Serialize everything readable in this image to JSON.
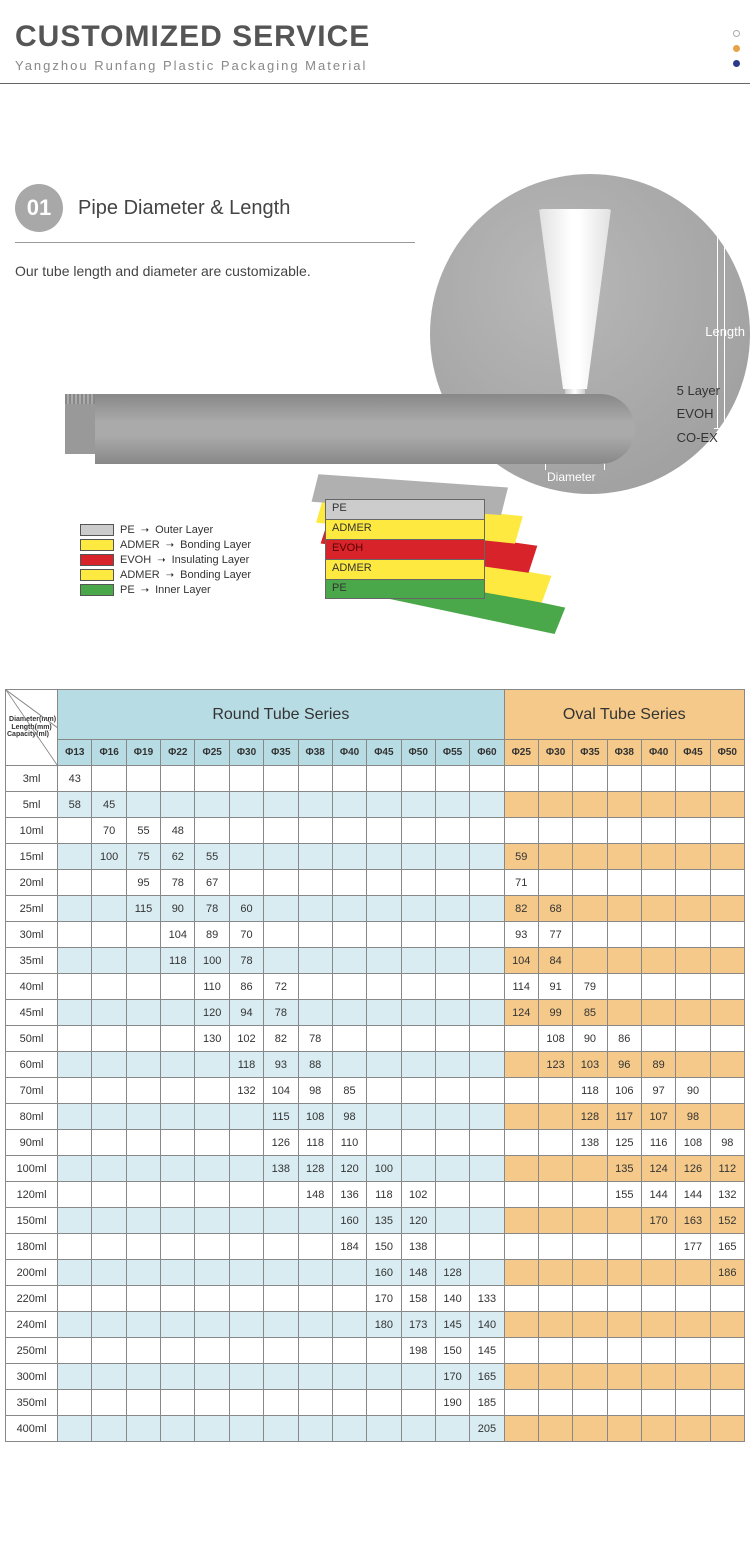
{
  "header": {
    "title": "CUSTOMIZED SERVICE",
    "subtitle": "Yangzhou Runfang Plastic Packaging Material"
  },
  "section01": {
    "num": "01",
    "title": "Pipe Diameter & Length",
    "desc": "Our tube length and diameter are customizable.",
    "len_label": "Length",
    "dia_label": "Diameter"
  },
  "layers": {
    "side_text": [
      "5 Layer",
      "EVOH",
      "CO-EX"
    ],
    "box": [
      "PE",
      "ADMER",
      "EVOH",
      "ADMER",
      "PE"
    ],
    "legend": [
      {
        "sw": "sw-pe",
        "name": "PE",
        "role": "Outer Layer"
      },
      {
        "sw": "sw-ad",
        "name": "ADMER",
        "role": "Bonding Layer"
      },
      {
        "sw": "sw-ev",
        "name": "EVOH",
        "role": "Insulating Layer"
      },
      {
        "sw": "sw-ad",
        "name": "ADMER",
        "role": "Bonding Layer"
      },
      {
        "sw": "sw-pe2",
        "name": "PE",
        "role": "Inner Layer"
      }
    ]
  },
  "table": {
    "round_title": "Round Tube Series",
    "oval_title": "Oval Tube Series",
    "corner": {
      "a": "Diameter(mm)",
      "b": "Length(mm)",
      "c": "Capacity(ml)"
    },
    "round_dias": [
      "Φ13",
      "Φ16",
      "Φ19",
      "Φ22",
      "Φ25",
      "Φ30",
      "Φ35",
      "Φ38",
      "Φ40",
      "Φ45",
      "Φ50",
      "Φ55",
      "Φ60"
    ],
    "oval_dias": [
      "Φ25",
      "Φ30",
      "Φ35",
      "Φ38",
      "Φ40",
      "Φ45",
      "Φ50"
    ],
    "rows": [
      {
        "cap": "3ml",
        "r": [
          "43",
          "",
          "",
          "",
          "",
          "",
          "",
          "",
          "",
          "",
          "",
          "",
          ""
        ],
        "o": [
          "",
          "",
          "",
          "",
          "",
          "",
          ""
        ]
      },
      {
        "cap": "5ml",
        "r": [
          "58",
          "45",
          "",
          "",
          "",
          "",
          "",
          "",
          "",
          "",
          "",
          "",
          ""
        ],
        "o": [
          "",
          "",
          "",
          "",
          "",
          "",
          ""
        ]
      },
      {
        "cap": "10ml",
        "r": [
          "",
          "70",
          "55",
          "48",
          "",
          "",
          "",
          "",
          "",
          "",
          "",
          "",
          ""
        ],
        "o": [
          "",
          "",
          "",
          "",
          "",
          "",
          ""
        ]
      },
      {
        "cap": "15ml",
        "r": [
          "",
          "100",
          "75",
          "62",
          "55",
          "",
          "",
          "",
          "",
          "",
          "",
          "",
          ""
        ],
        "o": [
          "59",
          "",
          "",
          "",
          "",
          "",
          ""
        ]
      },
      {
        "cap": "20ml",
        "r": [
          "",
          "",
          "95",
          "78",
          "67",
          "",
          "",
          "",
          "",
          "",
          "",
          "",
          ""
        ],
        "o": [
          "71",
          "",
          "",
          "",
          "",
          "",
          ""
        ]
      },
      {
        "cap": "25ml",
        "r": [
          "",
          "",
          "115",
          "90",
          "78",
          "60",
          "",
          "",
          "",
          "",
          "",
          "",
          ""
        ],
        "o": [
          "82",
          "68",
          "",
          "",
          "",
          "",
          ""
        ]
      },
      {
        "cap": "30ml",
        "r": [
          "",
          "",
          "",
          "104",
          "89",
          "70",
          "",
          "",
          "",
          "",
          "",
          "",
          ""
        ],
        "o": [
          "93",
          "77",
          "",
          "",
          "",
          "",
          ""
        ]
      },
      {
        "cap": "35ml",
        "r": [
          "",
          "",
          "",
          "118",
          "100",
          "78",
          "",
          "",
          "",
          "",
          "",
          "",
          ""
        ],
        "o": [
          "104",
          "84",
          "",
          "",
          "",
          "",
          ""
        ]
      },
      {
        "cap": "40ml",
        "r": [
          "",
          "",
          "",
          "",
          "110",
          "86",
          "72",
          "",
          "",
          "",
          "",
          "",
          ""
        ],
        "o": [
          "114",
          "91",
          "79",
          "",
          "",
          "",
          ""
        ]
      },
      {
        "cap": "45ml",
        "r": [
          "",
          "",
          "",
          "",
          "120",
          "94",
          "78",
          "",
          "",
          "",
          "",
          "",
          ""
        ],
        "o": [
          "124",
          "99",
          "85",
          "",
          "",
          "",
          ""
        ]
      },
      {
        "cap": "50ml",
        "r": [
          "",
          "",
          "",
          "",
          "130",
          "102",
          "82",
          "78",
          "",
          "",
          "",
          "",
          ""
        ],
        "o": [
          "",
          "108",
          "90",
          "86",
          "",
          "",
          ""
        ]
      },
      {
        "cap": "60ml",
        "r": [
          "",
          "",
          "",
          "",
          "",
          "118",
          "93",
          "88",
          "",
          "",
          "",
          "",
          ""
        ],
        "o": [
          "",
          "123",
          "103",
          "96",
          "89",
          "",
          ""
        ]
      },
      {
        "cap": "70ml",
        "r": [
          "",
          "",
          "",
          "",
          "",
          "132",
          "104",
          "98",
          "85",
          "",
          "",
          "",
          ""
        ],
        "o": [
          "",
          "",
          "118",
          "106",
          "97",
          "90",
          ""
        ]
      },
      {
        "cap": "80ml",
        "r": [
          "",
          "",
          "",
          "",
          "",
          "",
          "115",
          "108",
          "98",
          "",
          "",
          "",
          ""
        ],
        "o": [
          "",
          "",
          "128",
          "117",
          "107",
          "98",
          ""
        ]
      },
      {
        "cap": "90ml",
        "r": [
          "",
          "",
          "",
          "",
          "",
          "",
          "126",
          "118",
          "110",
          "",
          "",
          "",
          ""
        ],
        "o": [
          "",
          "",
          "138",
          "125",
          "116",
          "108",
          "98"
        ]
      },
      {
        "cap": "100ml",
        "r": [
          "",
          "",
          "",
          "",
          "",
          "",
          "138",
          "128",
          "120",
          "100",
          "",
          "",
          ""
        ],
        "o": [
          "",
          "",
          "",
          "135",
          "124",
          "126",
          "112"
        ]
      },
      {
        "cap": "120ml",
        "r": [
          "",
          "",
          "",
          "",
          "",
          "",
          "",
          "148",
          "136",
          "118",
          "102",
          "",
          ""
        ],
        "o": [
          "",
          "",
          "",
          "155",
          "144",
          "144",
          "132"
        ]
      },
      {
        "cap": "150ml",
        "r": [
          "",
          "",
          "",
          "",
          "",
          "",
          "",
          "",
          "160",
          "135",
          "120",
          "",
          ""
        ],
        "o": [
          "",
          "",
          "",
          "",
          "170",
          "163",
          "152"
        ]
      },
      {
        "cap": "180ml",
        "r": [
          "",
          "",
          "",
          "",
          "",
          "",
          "",
          "",
          "184",
          "150",
          "138",
          "",
          ""
        ],
        "o": [
          "",
          "",
          "",
          "",
          "",
          "177",
          "165"
        ]
      },
      {
        "cap": "200ml",
        "r": [
          "",
          "",
          "",
          "",
          "",
          "",
          "",
          "",
          "",
          "160",
          "148",
          "128",
          ""
        ],
        "o": [
          "",
          "",
          "",
          "",
          "",
          "",
          "186"
        ]
      },
      {
        "cap": "220ml",
        "r": [
          "",
          "",
          "",
          "",
          "",
          "",
          "",
          "",
          "",
          "170",
          "158",
          "140",
          "133"
        ],
        "o": [
          "",
          "",
          "",
          "",
          "",
          "",
          ""
        ]
      },
      {
        "cap": "240ml",
        "r": [
          "",
          "",
          "",
          "",
          "",
          "",
          "",
          "",
          "",
          "180",
          "173",
          "145",
          "140"
        ],
        "o": [
          "",
          "",
          "",
          "",
          "",
          "",
          ""
        ]
      },
      {
        "cap": "250ml",
        "r": [
          "",
          "",
          "",
          "",
          "",
          "",
          "",
          "",
          "",
          "",
          "198",
          "150",
          "145"
        ],
        "o": [
          "",
          "",
          "",
          "",
          "",
          "",
          ""
        ]
      },
      {
        "cap": "300ml",
        "r": [
          "",
          "",
          "",
          "",
          "",
          "",
          "",
          "",
          "",
          "",
          "",
          "170",
          "165"
        ],
        "o": [
          "",
          "",
          "",
          "",
          "",
          "",
          ""
        ]
      },
      {
        "cap": "350ml",
        "r": [
          "",
          "",
          "",
          "",
          "",
          "",
          "",
          "",
          "",
          "",
          "",
          "190",
          "185"
        ],
        "o": [
          "",
          "",
          "",
          "",
          "",
          "",
          ""
        ]
      },
      {
        "cap": "400ml",
        "r": [
          "",
          "",
          "",
          "",
          "",
          "",
          "",
          "",
          "",
          "",
          "",
          "",
          "205"
        ],
        "o": [
          "",
          "",
          "",
          "",
          "",
          "",
          ""
        ]
      }
    ]
  }
}
